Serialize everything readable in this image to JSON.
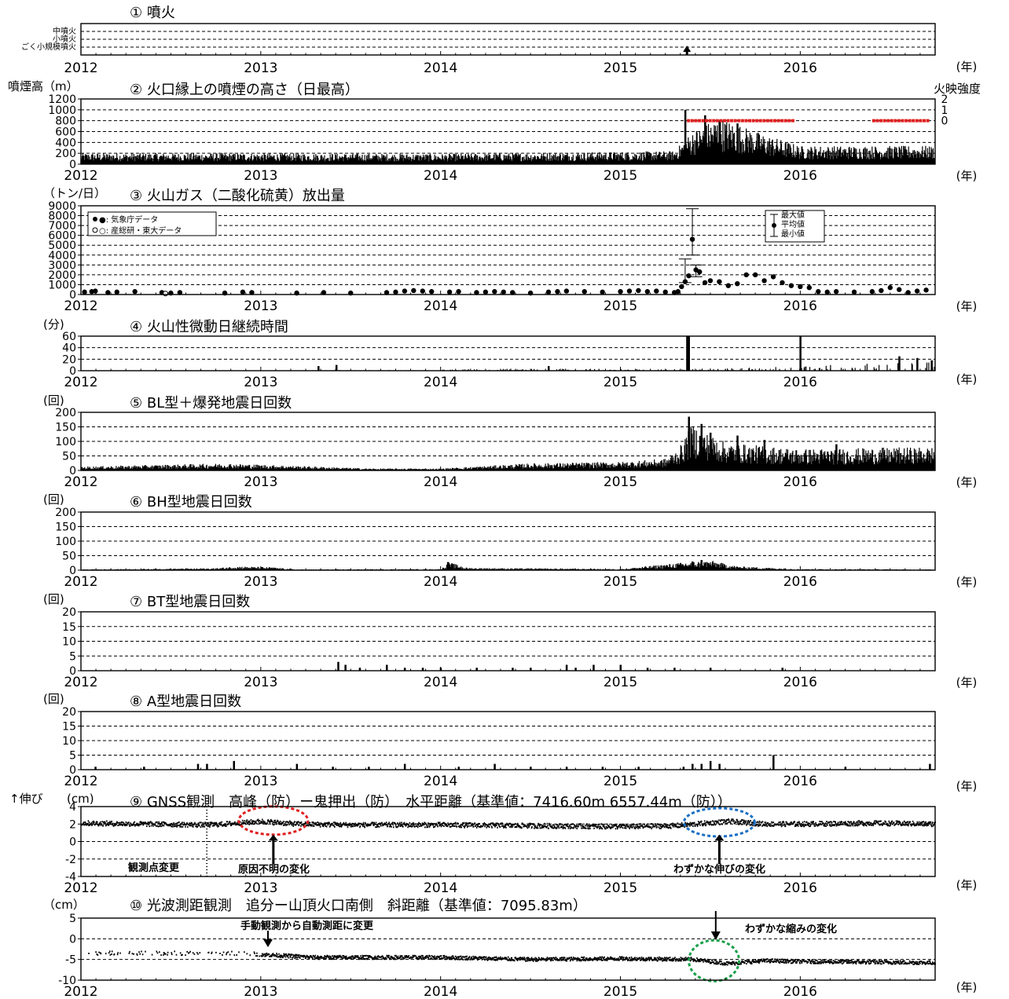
{
  "chart_data": [
    {
      "type": "bar",
      "title": "① 噴火",
      "unit_label": "(年)",
      "x_range": [
        2012,
        2016.75
      ],
      "x_ticks": [
        "2012",
        "2013",
        "2014",
        "2015",
        "2016"
      ],
      "y_category_labels": [
        "中噴火",
        "小噴火",
        "ごく小規模噴火"
      ],
      "grid": "dashed",
      "events": [
        {
          "x": 2015.37,
          "level": "ごく小規模噴火"
        }
      ]
    },
    {
      "type": "bar",
      "title": "② 火口縁上の噴煙の高さ（日最高）",
      "ylabel": "噴煙高（m）",
      "y2label": "火映強度",
      "ylim": [
        0,
        1200
      ],
      "y_ticks": [
        0,
        200,
        400,
        600,
        800,
        1000,
        1200
      ],
      "y2_ticks": [
        "0",
        "1",
        "2"
      ],
      "unit_label": "(年)",
      "x_ticks": [
        "2012",
        "2013",
        "2014",
        "2015",
        "2016"
      ],
      "series_profile": [
        [
          2012.0,
          150
        ],
        [
          2013.0,
          150
        ],
        [
          2014.0,
          140
        ],
        [
          2015.3,
          180
        ],
        [
          2015.4,
          450
        ],
        [
          2015.55,
          650
        ],
        [
          2015.75,
          450
        ],
        [
          2016.0,
          250
        ],
        [
          2016.75,
          250
        ]
      ],
      "spikes": [
        [
          2015.36,
          1000
        ],
        [
          2015.47,
          900
        ],
        [
          2015.55,
          800
        ],
        [
          2015.65,
          750
        ]
      ],
      "glow_segments": [
        [
          2015.37,
          2015.95
        ],
        [
          2016.4,
          2016.7
        ]
      ]
    },
    {
      "type": "scatter",
      "title": "③ 火山ガス（二酸化硫黄）放出量",
      "ylabel": "（トン/日）",
      "ylim": [
        0,
        9000
      ],
      "y_ticks": [
        0,
        1000,
        2000,
        3000,
        4000,
        5000,
        6000,
        7000,
        8000,
        9000
      ],
      "unit_label": "(年)",
      "x_ticks": [
        "2012",
        "2013",
        "2014",
        "2015",
        "2016"
      ],
      "legend": [
        "●: 気象庁データ",
        "○: 産総研・東大データ"
      ],
      "legend2": [
        "最大値",
        "平均値",
        "最小値"
      ],
      "points": [
        [
          2012.02,
          250
        ],
        [
          2012.06,
          300
        ],
        [
          2012.08,
          350
        ],
        [
          2012.15,
          200
        ],
        [
          2012.2,
          250
        ],
        [
          2012.3,
          300
        ],
        [
          2012.45,
          200
        ],
        [
          2012.5,
          150
        ],
        [
          2012.55,
          200
        ],
        [
          2012.8,
          150
        ],
        [
          2012.9,
          250
        ],
        [
          2012.95,
          200
        ],
        [
          2013.2,
          150
        ],
        [
          2013.35,
          200
        ],
        [
          2013.5,
          150
        ],
        [
          2013.7,
          200
        ],
        [
          2013.75,
          250
        ],
        [
          2013.8,
          350
        ],
        [
          2013.85,
          400
        ],
        [
          2013.9,
          350
        ],
        [
          2013.95,
          300
        ],
        [
          2014.05,
          250
        ],
        [
          2014.1,
          300
        ],
        [
          2014.2,
          200
        ],
        [
          2014.25,
          250
        ],
        [
          2014.3,
          300
        ],
        [
          2014.35,
          250
        ],
        [
          2014.4,
          200
        ],
        [
          2014.5,
          150
        ],
        [
          2014.6,
          250
        ],
        [
          2014.65,
          300
        ],
        [
          2014.7,
          350
        ],
        [
          2014.8,
          300
        ],
        [
          2014.9,
          250
        ],
        [
          2015.0,
          300
        ],
        [
          2015.05,
          350
        ],
        [
          2015.1,
          400
        ],
        [
          2015.15,
          300
        ],
        [
          2015.2,
          350
        ],
        [
          2015.25,
          250
        ],
        [
          2015.3,
          200
        ],
        [
          2015.32,
          300
        ],
        [
          2015.34,
          800
        ],
        [
          2015.36,
          1300
        ],
        [
          2015.38,
          1900
        ],
        [
          2015.4,
          5600
        ],
        [
          2015.42,
          2500
        ],
        [
          2015.44,
          2300
        ],
        [
          2015.47,
          1200
        ],
        [
          2015.5,
          1400
        ],
        [
          2015.55,
          1300
        ],
        [
          2015.6,
          900
        ],
        [
          2015.65,
          1100
        ],
        [
          2015.7,
          2000
        ],
        [
          2015.75,
          2000
        ],
        [
          2015.8,
          1400
        ],
        [
          2015.85,
          1800
        ],
        [
          2015.9,
          1200
        ],
        [
          2015.95,
          900
        ],
        [
          2016.0,
          800
        ],
        [
          2016.05,
          700
        ],
        [
          2016.1,
          300
        ],
        [
          2016.15,
          250
        ],
        [
          2016.2,
          300
        ],
        [
          2016.3,
          250
        ],
        [
          2016.4,
          300
        ],
        [
          2016.45,
          400
        ],
        [
          2016.5,
          700
        ],
        [
          2016.55,
          500
        ],
        [
          2016.6,
          200
        ],
        [
          2016.65,
          350
        ],
        [
          2016.7,
          450
        ]
      ],
      "open_points": [
        [
          2012.47,
          100
        ]
      ],
      "errorbars": [
        [
          2015.4,
          4000,
          8700
        ],
        [
          2015.36,
          1200,
          3600
        ],
        [
          2015.42,
          1800,
          3000
        ]
      ]
    },
    {
      "type": "bar",
      "title": "④ 火山性微動日継続時間",
      "ylabel": "(分)",
      "ylim": [
        0,
        60
      ],
      "y_ticks": [
        0,
        20,
        40,
        60
      ],
      "unit_label": "(年)",
      "x_ticks": [
        "2012",
        "2013",
        "2014",
        "2015",
        "2016"
      ],
      "spikes": [
        [
          2013.32,
          8
        ],
        [
          2013.42,
          10
        ],
        [
          2014.6,
          8
        ],
        [
          2015.37,
          60
        ],
        [
          2015.38,
          60
        ],
        [
          2016.0,
          60
        ],
        [
          2016.55,
          25
        ],
        [
          2016.65,
          22
        ],
        [
          2016.73,
          18
        ]
      ],
      "series_profile": [
        [
          2012.0,
          0
        ],
        [
          2013.9,
          1
        ],
        [
          2014.5,
          3
        ],
        [
          2015.3,
          2
        ],
        [
          2015.5,
          3
        ],
        [
          2016.05,
          6
        ],
        [
          2016.4,
          10
        ],
        [
          2016.75,
          12
        ]
      ]
    },
    {
      "type": "bar",
      "title": "⑤ BL型＋爆発地震日回数",
      "ylabel": "(回)",
      "ylim": [
        0,
        200
      ],
      "y_ticks": [
        0,
        50,
        100,
        150,
        200
      ],
      "unit_label": "(年)",
      "x_ticks": [
        "2012",
        "2013",
        "2014",
        "2015",
        "2016"
      ],
      "series_profile": [
        [
          2012.0,
          10
        ],
        [
          2012.8,
          18
        ],
        [
          2013.3,
          10
        ],
        [
          2013.6,
          5
        ],
        [
          2014.0,
          5
        ],
        [
          2014.5,
          18
        ],
        [
          2015.0,
          22
        ],
        [
          2015.25,
          30
        ],
        [
          2015.33,
          60
        ],
        [
          2015.4,
          120
        ],
        [
          2015.5,
          90
        ],
        [
          2015.6,
          70
        ],
        [
          2016.0,
          55
        ],
        [
          2016.75,
          60
        ]
      ],
      "spikes": [
        [
          2015.38,
          185
        ],
        [
          2015.45,
          160
        ],
        [
          2015.5,
          130
        ],
        [
          2015.65,
          120
        ],
        [
          2015.8,
          105
        ],
        [
          2016.2,
          90
        ]
      ]
    },
    {
      "type": "bar",
      "title": "⑥ BH型地震日回数",
      "ylabel": "(回)",
      "ylim": [
        0,
        200
      ],
      "y_ticks": [
        0,
        50,
        100,
        150,
        200
      ],
      "unit_label": "(年)",
      "x_ticks": [
        "2012",
        "2013",
        "2014",
        "2015",
        "2016"
      ],
      "series_profile": [
        [
          2012.0,
          2
        ],
        [
          2012.75,
          5
        ],
        [
          2012.85,
          10
        ],
        [
          2013.05,
          8
        ],
        [
          2013.2,
          2
        ],
        [
          2014.0,
          3
        ],
        [
          2014.05,
          20
        ],
        [
          2014.15,
          6
        ],
        [
          2015.0,
          3
        ],
        [
          2015.35,
          20
        ],
        [
          2015.5,
          25
        ],
        [
          2015.65,
          10
        ],
        [
          2016.0,
          3
        ],
        [
          2016.75,
          2
        ]
      ],
      "spikes": [
        [
          2014.04,
          28
        ],
        [
          2015.4,
          30
        ],
        [
          2015.45,
          35
        ]
      ]
    },
    {
      "type": "bar",
      "title": "⑦ BT型地震日回数",
      "ylabel": "(回)",
      "ylim": [
        0,
        20
      ],
      "y_ticks": [
        0,
        5,
        10,
        15,
        20
      ],
      "unit_label": "(年)",
      "x_ticks": [
        "2012",
        "2013",
        "2014",
        "2015",
        "2016"
      ],
      "spikes": [
        [
          2013.43,
          3
        ],
        [
          2013.47,
          2
        ],
        [
          2013.55,
          1
        ],
        [
          2013.7,
          2
        ],
        [
          2013.8,
          1
        ],
        [
          2013.9,
          1
        ],
        [
          2014.0,
          1
        ],
        [
          2014.2,
          1
        ],
        [
          2014.4,
          1
        ],
        [
          2014.5,
          1
        ],
        [
          2014.7,
          2
        ],
        [
          2014.75,
          1
        ],
        [
          2014.85,
          2
        ],
        [
          2015.0,
          2
        ],
        [
          2015.15,
          1
        ],
        [
          2015.3,
          1
        ],
        [
          2015.5,
          1
        ],
        [
          2015.9,
          1
        ]
      ]
    },
    {
      "type": "bar",
      "title": "⑧ A型地震日回数",
      "ylabel": "(回)",
      "ylim": [
        0,
        20
      ],
      "y_ticks": [
        0,
        5,
        10,
        15,
        20
      ],
      "unit_label": "(年)",
      "x_ticks": [
        "2012",
        "2013",
        "2014",
        "2015",
        "2016"
      ],
      "spikes": [
        [
          2012.08,
          1
        ],
        [
          2012.35,
          1
        ],
        [
          2012.65,
          2
        ],
        [
          2012.7,
          2
        ],
        [
          2012.85,
          3
        ],
        [
          2013.2,
          2
        ],
        [
          2013.4,
          1
        ],
        [
          2013.6,
          1
        ],
        [
          2013.8,
          2
        ],
        [
          2014.1,
          1
        ],
        [
          2014.3,
          2
        ],
        [
          2014.5,
          1
        ],
        [
          2014.7,
          1
        ],
        [
          2014.9,
          1
        ],
        [
          2015.1,
          1
        ],
        [
          2015.35,
          1
        ],
        [
          2015.4,
          2
        ],
        [
          2015.45,
          2
        ],
        [
          2015.5,
          3
        ],
        [
          2015.55,
          2
        ],
        [
          2015.85,
          5
        ],
        [
          2016.25,
          1
        ],
        [
          2016.72,
          2
        ]
      ]
    },
    {
      "type": "scatter",
      "title": "⑨ GNSS観測　高峰（防）ー鬼押出（防）　水平距離（基準値：7416.60m 6557.44m（防））",
      "ylabel": "(cm)",
      "ylabel_extra": "↑伸び",
      "ylim": [
        -4,
        4
      ],
      "y_ticks": [
        -4,
        -2,
        0,
        2,
        4
      ],
      "unit_label": "(年)",
      "x_ticks": [
        "2012",
        "2013",
        "2014",
        "2015",
        "2016"
      ],
      "series_profile": [
        [
          2012.0,
          2.1
        ],
        [
          2012.7,
          1.9
        ],
        [
          2012.8,
          2.0
        ],
        [
          2013.0,
          2.3
        ],
        [
          2013.2,
          2.0
        ],
        [
          2013.5,
          1.9
        ],
        [
          2014.0,
          1.9
        ],
        [
          2014.5,
          1.8
        ],
        [
          2015.0,
          1.7
        ],
        [
          2015.3,
          1.8
        ],
        [
          2015.6,
          2.3
        ],
        [
          2015.8,
          2.0
        ],
        [
          2016.0,
          2.0
        ],
        [
          2016.4,
          2.1
        ],
        [
          2016.75,
          2.0
        ]
      ],
      "annotations": [
        "観測点変更",
        "原因不明の変化",
        "わずかな伸びの変化"
      ]
    },
    {
      "type": "scatter",
      "title": "⑩ 光波測距観測　追分ー山頂火口南側　斜距離（基準値：7095.83m）",
      "ylabel": "（cm）",
      "ylim": [
        -10,
        5
      ],
      "y_ticks": [
        -10,
        -5,
        0,
        5
      ],
      "unit_label": "(年)",
      "x_ticks": [
        "2012",
        "2013",
        "2014",
        "2015",
        "2016"
      ],
      "series_profile": [
        [
          2012.0,
          -3.5
        ],
        [
          2012.9,
          -3.5
        ],
        [
          2013.0,
          -3.8
        ],
        [
          2013.3,
          -4.5
        ],
        [
          2014.0,
          -4.5
        ],
        [
          2014.5,
          -5.0
        ],
        [
          2015.0,
          -4.8
        ],
        [
          2015.4,
          -5.0
        ],
        [
          2015.6,
          -6.0
        ],
        [
          2015.8,
          -5.3
        ],
        [
          2016.0,
          -5.5
        ],
        [
          2016.75,
          -5.8
        ]
      ],
      "annotations": [
        "手動観測から自動測距に変更",
        "わずかな縮みの変化"
      ]
    }
  ]
}
